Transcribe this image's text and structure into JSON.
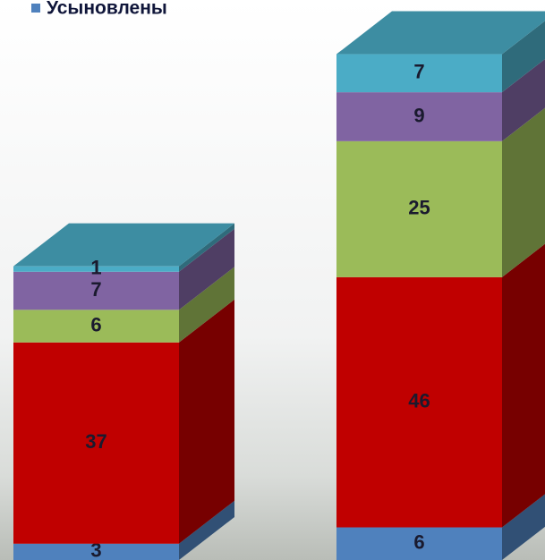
{
  "chart_data": {
    "type": "bar3d-stacked",
    "categories": [
      null,
      null
    ],
    "series": [
      {
        "name": "Усыновлены",
        "color": "#4f81bd",
        "values": [
          3,
          6
        ]
      },
      {
        "color": "#c00000",
        "values": [
          37,
          46
        ]
      },
      {
        "color": "#9bbb59",
        "values": [
          6,
          25
        ]
      },
      {
        "color": "#8064a2",
        "values": [
          7,
          9
        ]
      },
      {
        "color": "#4bacc6",
        "values": [
          1,
          7
        ]
      }
    ]
  }
}
